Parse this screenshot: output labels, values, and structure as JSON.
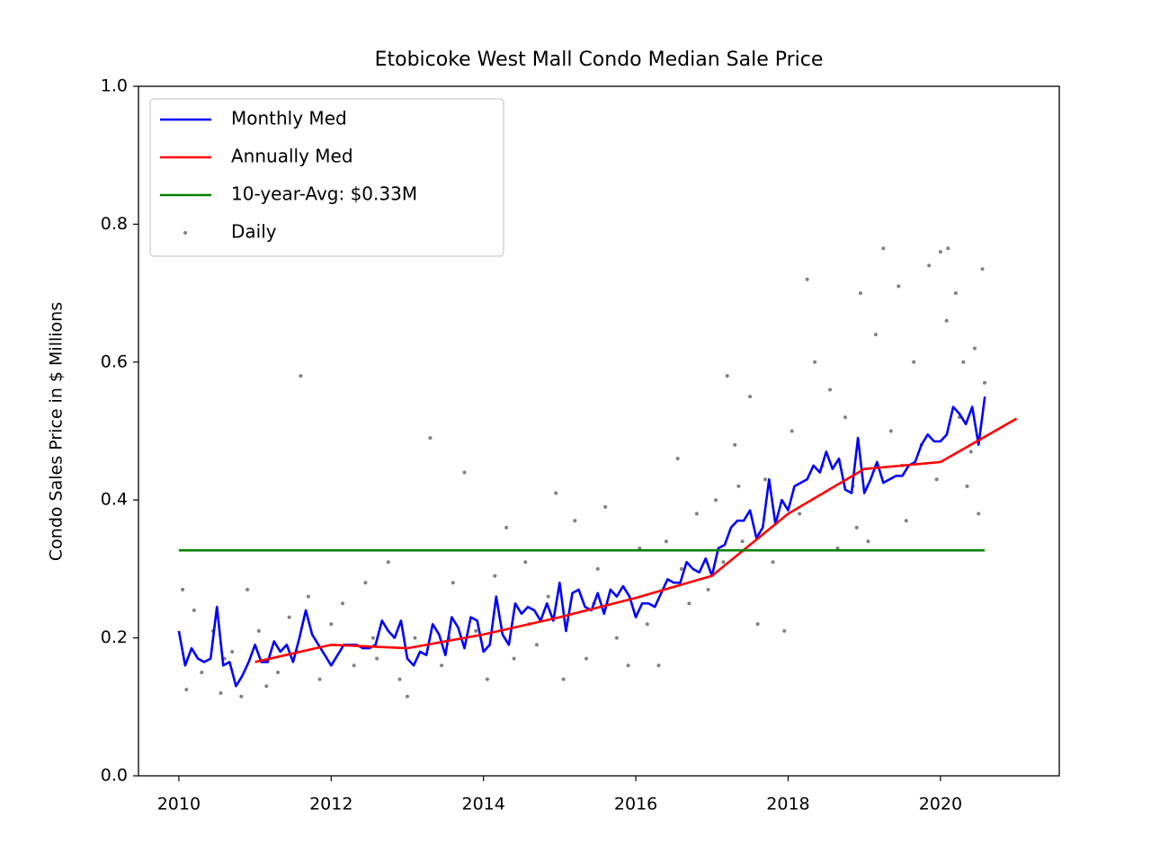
{
  "chart_data": {
    "type": "line",
    "title": "Etobicoke West Mall Condo Median Sale Price",
    "y_label": "Condo Sales Price in $ Millions",
    "xlim": [
      2009.47,
      2021.56
    ],
    "xticks": [
      2010,
      2012,
      2014,
      2016,
      2018,
      2020
    ],
    "ylim": [
      0,
      1
    ],
    "yticks": [
      {
        "value": 0,
        "label": "0.0"
      },
      {
        "value": 0.2,
        "label": "0.2"
      },
      {
        "value": 0.4,
        "label": "0.4"
      },
      {
        "value": 0.6,
        "label": "0.6"
      },
      {
        "value": 0.8,
        "label": "0.8"
      },
      {
        "value": 1,
        "label": "1.0"
      }
    ],
    "grid": false,
    "legend": "upper left",
    "series": [
      {
        "name": "Monthly Med",
        "color": "#0000ff",
        "style": "line",
        "x": [
          2010.0,
          2010.083,
          2010.167,
          2010.25,
          2010.333,
          2010.417,
          2010.5,
          2010.583,
          2010.667,
          2010.75,
          2010.833,
          2010.917,
          2011.0,
          2011.083,
          2011.167,
          2011.25,
          2011.333,
          2011.417,
          2011.5,
          2011.583,
          2011.667,
          2011.75,
          2011.833,
          2011.917,
          2012.0,
          2012.083,
          2012.167,
          2012.25,
          2012.333,
          2012.417,
          2012.5,
          2012.583,
          2012.667,
          2012.75,
          2012.833,
          2012.917,
          2013.0,
          2013.083,
          2013.167,
          2013.25,
          2013.333,
          2013.417,
          2013.5,
          2013.583,
          2013.667,
          2013.75,
          2013.833,
          2013.917,
          2014.0,
          2014.083,
          2014.167,
          2014.25,
          2014.333,
          2014.417,
          2014.5,
          2014.583,
          2014.667,
          2014.75,
          2014.833,
          2014.917,
          2015.0,
          2015.083,
          2015.167,
          2015.25,
          2015.333,
          2015.417,
          2015.5,
          2015.583,
          2015.667,
          2015.75,
          2015.833,
          2015.917,
          2016.0,
          2016.083,
          2016.167,
          2016.25,
          2016.333,
          2016.417,
          2016.5,
          2016.583,
          2016.667,
          2016.75,
          2016.833,
          2016.917,
          2017.0,
          2017.083,
          2017.167,
          2017.25,
          2017.333,
          2017.417,
          2017.5,
          2017.583,
          2017.667,
          2017.75,
          2017.833,
          2017.917,
          2018.0,
          2018.083,
          2018.167,
          2018.25,
          2018.333,
          2018.417,
          2018.5,
          2018.583,
          2018.667,
          2018.75,
          2018.833,
          2018.917,
          2019.0,
          2019.083,
          2019.167,
          2019.25,
          2019.333,
          2019.417,
          2019.5,
          2019.583,
          2019.667,
          2019.75,
          2019.833,
          2019.917,
          2020.0,
          2020.083,
          2020.167,
          2020.25,
          2020.333,
          2020.417,
          2020.5,
          2020.583
        ],
        "values": [
          0.21,
          0.16,
          0.185,
          0.17,
          0.165,
          0.17,
          0.245,
          0.16,
          0.165,
          0.13,
          0.145,
          0.165,
          0.19,
          0.165,
          0.165,
          0.195,
          0.18,
          0.19,
          0.165,
          0.2,
          0.24,
          0.205,
          0.19,
          0.175,
          0.16,
          0.175,
          0.19,
          0.19,
          0.19,
          0.185,
          0.185,
          0.19,
          0.225,
          0.21,
          0.2,
          0.225,
          0.17,
          0.16,
          0.18,
          0.175,
          0.22,
          0.205,
          0.175,
          0.23,
          0.215,
          0.185,
          0.23,
          0.225,
          0.18,
          0.19,
          0.26,
          0.205,
          0.19,
          0.25,
          0.235,
          0.245,
          0.24,
          0.225,
          0.25,
          0.225,
          0.28,
          0.21,
          0.265,
          0.27,
          0.245,
          0.24,
          0.265,
          0.235,
          0.27,
          0.26,
          0.275,
          0.26,
          0.23,
          0.25,
          0.25,
          0.245,
          0.265,
          0.285,
          0.28,
          0.28,
          0.31,
          0.3,
          0.295,
          0.315,
          0.29,
          0.33,
          0.335,
          0.36,
          0.37,
          0.37,
          0.385,
          0.345,
          0.36,
          0.43,
          0.365,
          0.4,
          0.385,
          0.42,
          0.425,
          0.43,
          0.45,
          0.44,
          0.47,
          0.445,
          0.46,
          0.415,
          0.41,
          0.49,
          0.41,
          0.43,
          0.455,
          0.425,
          0.43,
          0.435,
          0.435,
          0.45,
          0.455,
          0.48,
          0.495,
          0.485,
          0.485,
          0.495,
          0.535,
          0.525,
          0.51,
          0.535,
          0.48,
          0.55
        ]
      },
      {
        "name": "Annually Med",
        "color": "#ff0000",
        "style": "line",
        "x": [
          2011,
          2012,
          2013,
          2014,
          2015,
          2016,
          2017,
          2018,
          2019,
          2020,
          2021
        ],
        "values": [
          0.165,
          0.19,
          0.185,
          0.205,
          0.23,
          0.258,
          0.29,
          0.38,
          0.445,
          0.455,
          0.518
        ]
      },
      {
        "name": "10-year-Avg: $0.33M",
        "color": "#008000",
        "style": "line",
        "x": [
          2010,
          2020.58
        ],
        "values": [
          0.327,
          0.327
        ]
      },
      {
        "name": "Daily",
        "color": "#808080",
        "style": "scatter",
        "x": [
          2010.05,
          2010.1,
          2010.2,
          2010.3,
          2010.45,
          2010.55,
          2010.7,
          2010.82,
          2010.9,
          2011.05,
          2011.15,
          2011.3,
          2011.45,
          2011.6,
          2011.7,
          2011.85,
          2012.0,
          2012.15,
          2012.3,
          2012.45,
          2012.6,
          2012.75,
          2012.9,
          2013.0,
          2013.1,
          2013.3,
          2013.45,
          2013.6,
          2013.75,
          2013.9,
          2014.05,
          2014.15,
          2014.3,
          2014.4,
          2014.55,
          2014.7,
          2014.85,
          2014.95,
          2015.05,
          2015.2,
          2015.35,
          2015.5,
          2015.6,
          2015.75,
          2015.9,
          2016.05,
          2016.15,
          2016.3,
          2016.4,
          2016.55,
          2016.7,
          2016.8,
          2016.95,
          2017.05,
          2017.15,
          2017.2,
          2017.3,
          2017.4,
          2017.5,
          2017.6,
          2017.7,
          2017.8,
          2017.95,
          2018.05,
          2018.15,
          2018.25,
          2018.35,
          2018.45,
          2018.55,
          2018.65,
          2018.75,
          2018.85,
          2018.95,
          2019.05,
          2019.15,
          2019.25,
          2019.35,
          2019.45,
          2019.55,
          2019.65,
          2019.75,
          2019.85,
          2019.95,
          2020.0,
          2020.08,
          2020.1,
          2020.2,
          2020.25,
          2020.3,
          2020.35,
          2020.45,
          2020.5,
          2020.55,
          2020.58,
          2020.4,
          2019.5,
          2018.9,
          2017.35,
          2016.6,
          2015.45,
          2014.6,
          2013.55,
          2012.55,
          2011.55,
          2010.6
        ],
        "values": [
          0.27,
          0.125,
          0.24,
          0.15,
          0.21,
          0.12,
          0.18,
          0.115,
          0.27,
          0.21,
          0.13,
          0.15,
          0.23,
          0.58,
          0.26,
          0.14,
          0.22,
          0.25,
          0.16,
          0.28,
          0.17,
          0.31,
          0.14,
          0.115,
          0.2,
          0.49,
          0.16,
          0.28,
          0.44,
          0.21,
          0.14,
          0.29,
          0.36,
          0.17,
          0.31,
          0.19,
          0.26,
          0.41,
          0.14,
          0.37,
          0.17,
          0.3,
          0.39,
          0.2,
          0.16,
          0.33,
          0.22,
          0.16,
          0.34,
          0.46,
          0.25,
          0.38,
          0.27,
          0.4,
          0.31,
          0.58,
          0.48,
          0.34,
          0.55,
          0.22,
          0.43,
          0.31,
          0.21,
          0.5,
          0.38,
          0.72,
          0.6,
          0.45,
          0.56,
          0.33,
          0.52,
          0.42,
          0.7,
          0.34,
          0.64,
          0.765,
          0.5,
          0.71,
          0.37,
          0.6,
          0.48,
          0.74,
          0.43,
          0.76,
          0.66,
          0.765,
          0.7,
          0.52,
          0.6,
          0.42,
          0.62,
          0.38,
          0.735,
          0.57,
          0.47,
          0.45,
          0.36,
          0.42,
          0.3,
          0.25,
          0.22,
          0.2,
          0.2,
          0.18,
          0.17
        ]
      }
    ]
  }
}
